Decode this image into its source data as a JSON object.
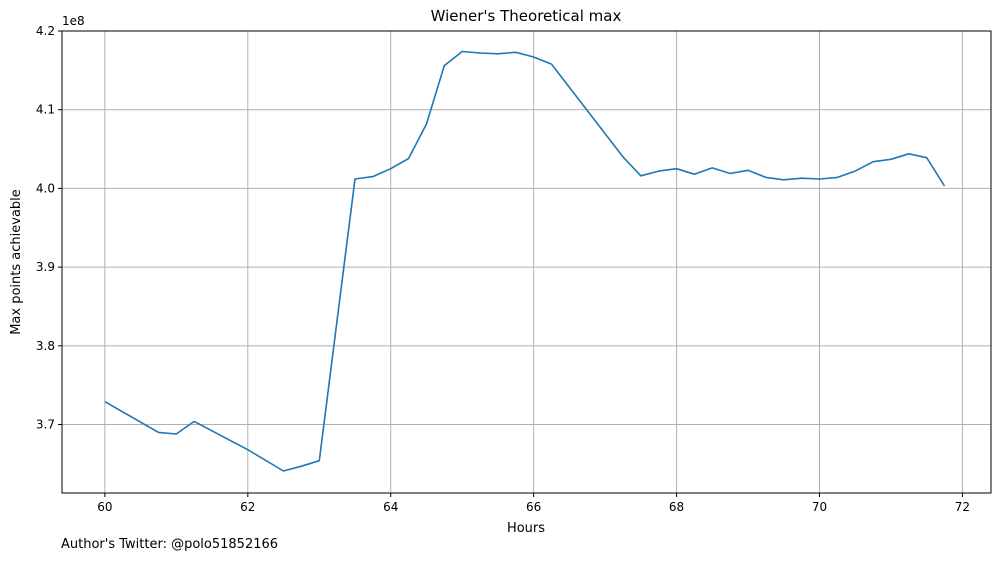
{
  "chart_data": {
    "type": "line",
    "title": "Wiener's Theoretical max",
    "xlabel": "Hours",
    "ylabel": "Max points achievable",
    "y_offset_label": "1e8",
    "y_multiplier": 100000000,
    "xlim": [
      59.4,
      72.4
    ],
    "ylim": [
      3.613,
      4.2
    ],
    "xticks": [
      60,
      62,
      64,
      66,
      68,
      70,
      72
    ],
    "xtick_labels": [
      "60",
      "62",
      "64",
      "66",
      "68",
      "70",
      "72"
    ],
    "yticks": [
      3.7,
      3.8,
      3.9,
      4.0,
      4.1,
      4.2
    ],
    "ytick_labels": [
      "3.7",
      "3.8",
      "3.9",
      "4.0",
      "4.1",
      "4.2"
    ],
    "grid": true,
    "series_color": "#1f77b4",
    "grid_color": "#b0b0b0",
    "x": [
      60.0,
      60.75,
      61.0,
      61.25,
      61.75,
      62.0,
      62.5,
      62.75,
      63.0,
      63.5,
      63.75,
      64.0,
      64.25,
      64.5,
      64.75,
      65.0,
      65.25,
      65.5,
      65.75,
      66.0,
      66.25,
      67.25,
      67.5,
      67.75,
      68.0,
      68.25,
      68.5,
      68.75,
      69.0,
      69.25,
      69.5,
      69.75,
      70.0,
      70.25,
      70.5,
      70.75,
      71.0,
      71.25,
      71.5,
      71.75
    ],
    "y": [
      3.729,
      3.69,
      3.688,
      3.704,
      3.68,
      3.668,
      3.641,
      3.647,
      3.654,
      4.012,
      4.015,
      4.025,
      4.038,
      4.082,
      4.156,
      4.174,
      4.172,
      4.171,
      4.173,
      4.167,
      4.158,
      4.04,
      4.016,
      4.022,
      4.025,
      4.018,
      4.026,
      4.019,
      4.023,
      4.014,
      4.011,
      4.013,
      4.012,
      4.014,
      4.022,
      4.034,
      4.037,
      4.044,
      4.039,
      4.003
    ]
  },
  "footer": {
    "note": "Author's Twitter: @polo51852166"
  }
}
